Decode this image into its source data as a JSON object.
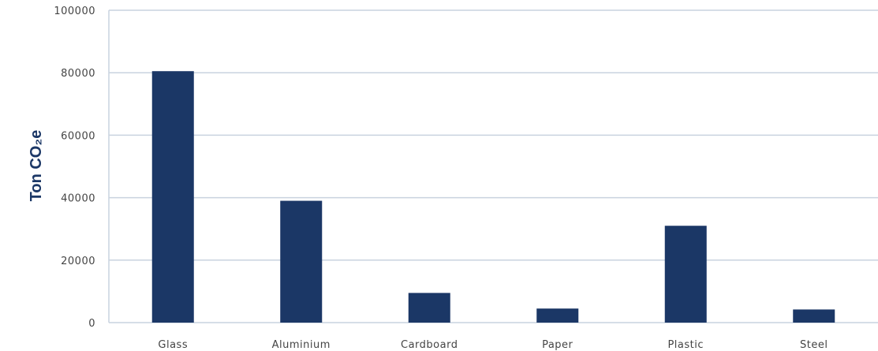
{
  "chart_data": {
    "type": "bar",
    "title": "",
    "xlabel": "",
    "ylabel": "Ton CO₂e",
    "categories": [
      "Glass",
      "Aluminium",
      "Cardboard",
      "Paper",
      "Plastic",
      "Steel"
    ],
    "values": [
      80500,
      39000,
      9500,
      4500,
      31000,
      4200
    ],
    "ylim": [
      0,
      100000
    ],
    "yticks": [
      "0",
      "20000",
      "40000",
      "60000",
      "80000",
      "100000"
    ],
    "grid": true,
    "legend": "none",
    "colors": {
      "bar": "#1b3766",
      "grid": "#c9d3df",
      "axis": "#c9d3df"
    }
  }
}
